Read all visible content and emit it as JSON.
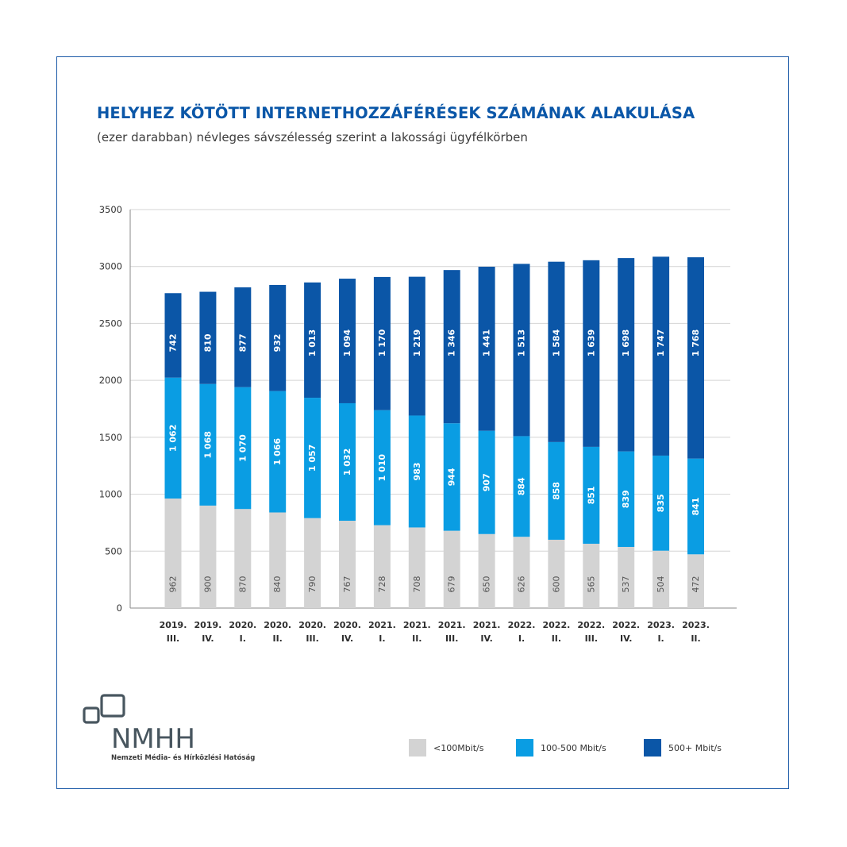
{
  "header": {
    "title": "HELYHEZ KÖTÖTT INTERNETHOZZÁFÉRÉSEK SZÁMÁNAK ALAKULÁSA",
    "subtitle": "(ezer darabban) névleges sávszélesség szerint a lakossági ügyfélkörben"
  },
  "chart_data": {
    "type": "bar",
    "stacked": true,
    "title": "HELYHEZ KÖTÖTT INTERNETHOZZÁFÉRÉSEK SZÁMÁNAK ALAKULÁSA",
    "subtitle": "(ezer darabban) névleges sávszélesség szerint a lakossági ügyfélkörben",
    "xlabel": "",
    "ylabel": "",
    "ylim": [
      0,
      3500
    ],
    "yticks": [
      0,
      500,
      1000,
      1500,
      2000,
      2500,
      3000,
      3500
    ],
    "grid": true,
    "legend_position": "bottom-right",
    "categories": [
      [
        "2019.",
        "III."
      ],
      [
        "2019.",
        "IV."
      ],
      [
        "2020.",
        "I."
      ],
      [
        "2020.",
        "II."
      ],
      [
        "2020.",
        "III."
      ],
      [
        "2020.",
        "IV."
      ],
      [
        "2021.",
        "I."
      ],
      [
        "2021.",
        "II."
      ],
      [
        "2021.",
        "III."
      ],
      [
        "2021.",
        "IV."
      ],
      [
        "2022.",
        "I."
      ],
      [
        "2022.",
        "II."
      ],
      [
        "2022.",
        "III."
      ],
      [
        "2022.",
        "IV."
      ],
      [
        "2023.",
        "I."
      ],
      [
        "2023.",
        "II."
      ]
    ],
    "series": [
      {
        "name": "<100Mbit/s",
        "color": "#d3d3d3",
        "label_color": "#555555",
        "values": [
          962,
          900,
          870,
          840,
          790,
          767,
          728,
          708,
          679,
          650,
          626,
          600,
          565,
          537,
          504,
          472
        ],
        "labels": [
          "962",
          "900",
          "870",
          "840",
          "790",
          "767",
          "728",
          "708",
          "679",
          "650",
          "626",
          "600",
          "565",
          "537",
          "504",
          "472"
        ]
      },
      {
        "name": "100-500 Mbit/s",
        "color": "#0a9de3",
        "label_color": "#ffffff",
        "values": [
          1062,
          1068,
          1070,
          1066,
          1057,
          1032,
          1010,
          983,
          944,
          907,
          884,
          858,
          851,
          839,
          835,
          841
        ],
        "labels": [
          "1 062",
          "1 068",
          "1 070",
          "1 066",
          "1 057",
          "1 032",
          "1 010",
          "983",
          "944",
          "907",
          "884",
          "858",
          "851",
          "839",
          "835",
          "841"
        ]
      },
      {
        "name": "500+ Mbit/s",
        "color": "#0b56a7",
        "label_color": "#ffffff",
        "values": [
          742,
          810,
          877,
          932,
          1013,
          1094,
          1170,
          1219,
          1346,
          1441,
          1513,
          1584,
          1639,
          1698,
          1747,
          1768
        ],
        "labels": [
          "742",
          "810",
          "877",
          "932",
          "1 013",
          "1 094",
          "1 170",
          "1 219",
          "1 346",
          "1 441",
          "1 513",
          "1 584",
          "1 639",
          "1 698",
          "1 747",
          "1 768"
        ]
      }
    ]
  },
  "legend": [
    {
      "label": "<100Mbit/s",
      "color": "#d3d3d3"
    },
    {
      "label": "100-500 Mbit/s",
      "color": "#0a9de3"
    },
    {
      "label": "500+ Mbit/s",
      "color": "#0b56a7"
    }
  ],
  "logo": {
    "text": "NMHH",
    "caption": "Nemzeti Média- és Hírközlési Hatóság",
    "color": "#48565f"
  }
}
